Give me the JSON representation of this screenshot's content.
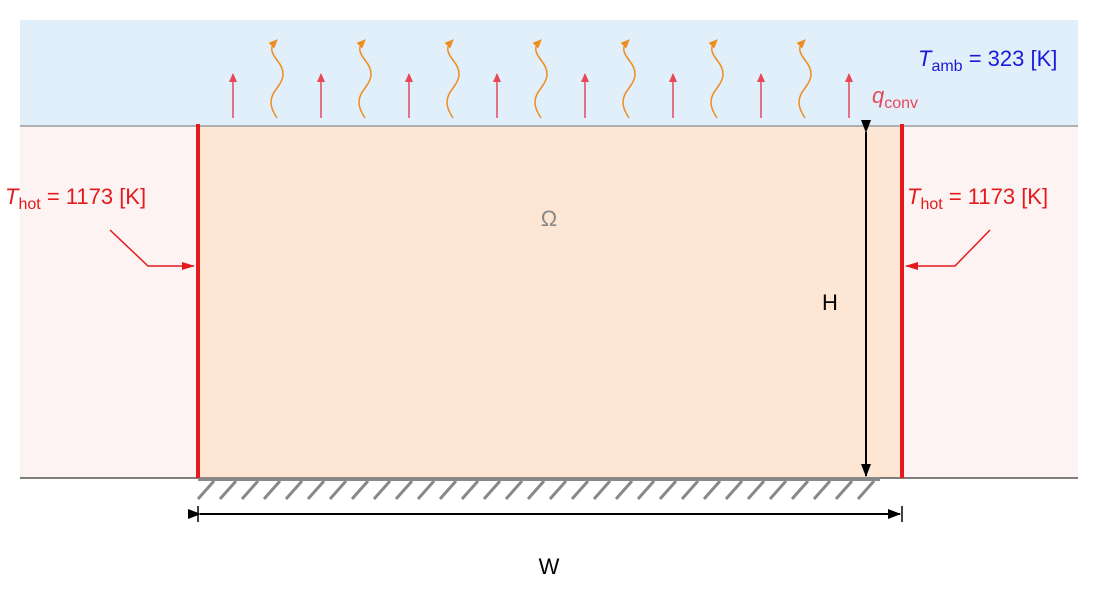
{
  "labels": {
    "ambient": {
      "symbol": "T",
      "subscript": "amb",
      "rest": " = 323 [K]"
    },
    "flux": {
      "symbol": "q",
      "subscript": "conv"
    },
    "hot_left": {
      "symbol": "T",
      "subscript": "hot",
      "rest": " = 1173 [K]"
    },
    "hot_right": {
      "symbol": "T",
      "subscript": "hot",
      "rest": " = 1173 [K]"
    },
    "domain": "Ω",
    "height": "H",
    "width": "W"
  }
}
